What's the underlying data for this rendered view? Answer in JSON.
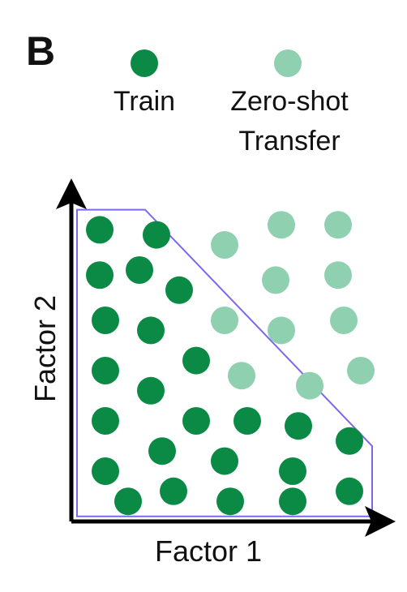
{
  "panel_label": "B",
  "legend": {
    "train_label": "Train",
    "transfer_label_line1": "Zero-shot",
    "transfer_label_line2": "Transfer"
  },
  "axes": {
    "x_label": "Factor 1",
    "y_label": "Factor 2"
  },
  "colors": {
    "train": "#0a8a45",
    "transfer": "#8fd0b0",
    "boundary": "#7b68ee",
    "axis": "#000000"
  },
  "chart_data": {
    "type": "scatter",
    "title": "",
    "xlabel": "Factor 1",
    "ylabel": "Factor 2",
    "xlim": [
      0,
      6.5
    ],
    "ylim": [
      0,
      6.5
    ],
    "grid": false,
    "legend_position": "top",
    "boundary_polygon": [
      [
        0.1,
        6.2
      ],
      [
        1.3,
        6.2
      ],
      [
        5.3,
        1.5
      ],
      [
        5.3,
        0.1
      ],
      [
        0.1,
        0.1
      ]
    ],
    "series": [
      {
        "name": "Train",
        "points": [
          [
            0.5,
            5.8
          ],
          [
            1.5,
            5.7
          ],
          [
            0.5,
            4.9
          ],
          [
            1.2,
            5.0
          ],
          [
            1.9,
            4.6
          ],
          [
            0.6,
            4.0
          ],
          [
            1.4,
            3.8
          ],
          [
            0.6,
            3.0
          ],
          [
            1.4,
            2.6
          ],
          [
            2.2,
            3.2
          ],
          [
            0.6,
            2.0
          ],
          [
            2.2,
            2.0
          ],
          [
            3.1,
            2.0
          ],
          [
            4.0,
            1.9
          ],
          [
            0.6,
            1.0
          ],
          [
            1.6,
            1.4
          ],
          [
            2.7,
            1.2
          ],
          [
            3.9,
            1.0
          ],
          [
            4.9,
            1.6
          ],
          [
            1.0,
            0.4
          ],
          [
            1.8,
            0.6
          ],
          [
            2.8,
            0.4
          ],
          [
            3.9,
            0.4
          ],
          [
            4.9,
            0.6
          ]
        ]
      },
      {
        "name": "Zero-shot Transfer",
        "points": [
          [
            3.7,
            5.9
          ],
          [
            4.7,
            5.9
          ],
          [
            2.7,
            5.5
          ],
          [
            3.6,
            4.8
          ],
          [
            4.7,
            4.9
          ],
          [
            2.7,
            4.0
          ],
          [
            3.7,
            3.8
          ],
          [
            4.8,
            4.0
          ],
          [
            3.0,
            2.9
          ],
          [
            4.2,
            2.7
          ],
          [
            5.1,
            3.0
          ]
        ]
      }
    ]
  }
}
